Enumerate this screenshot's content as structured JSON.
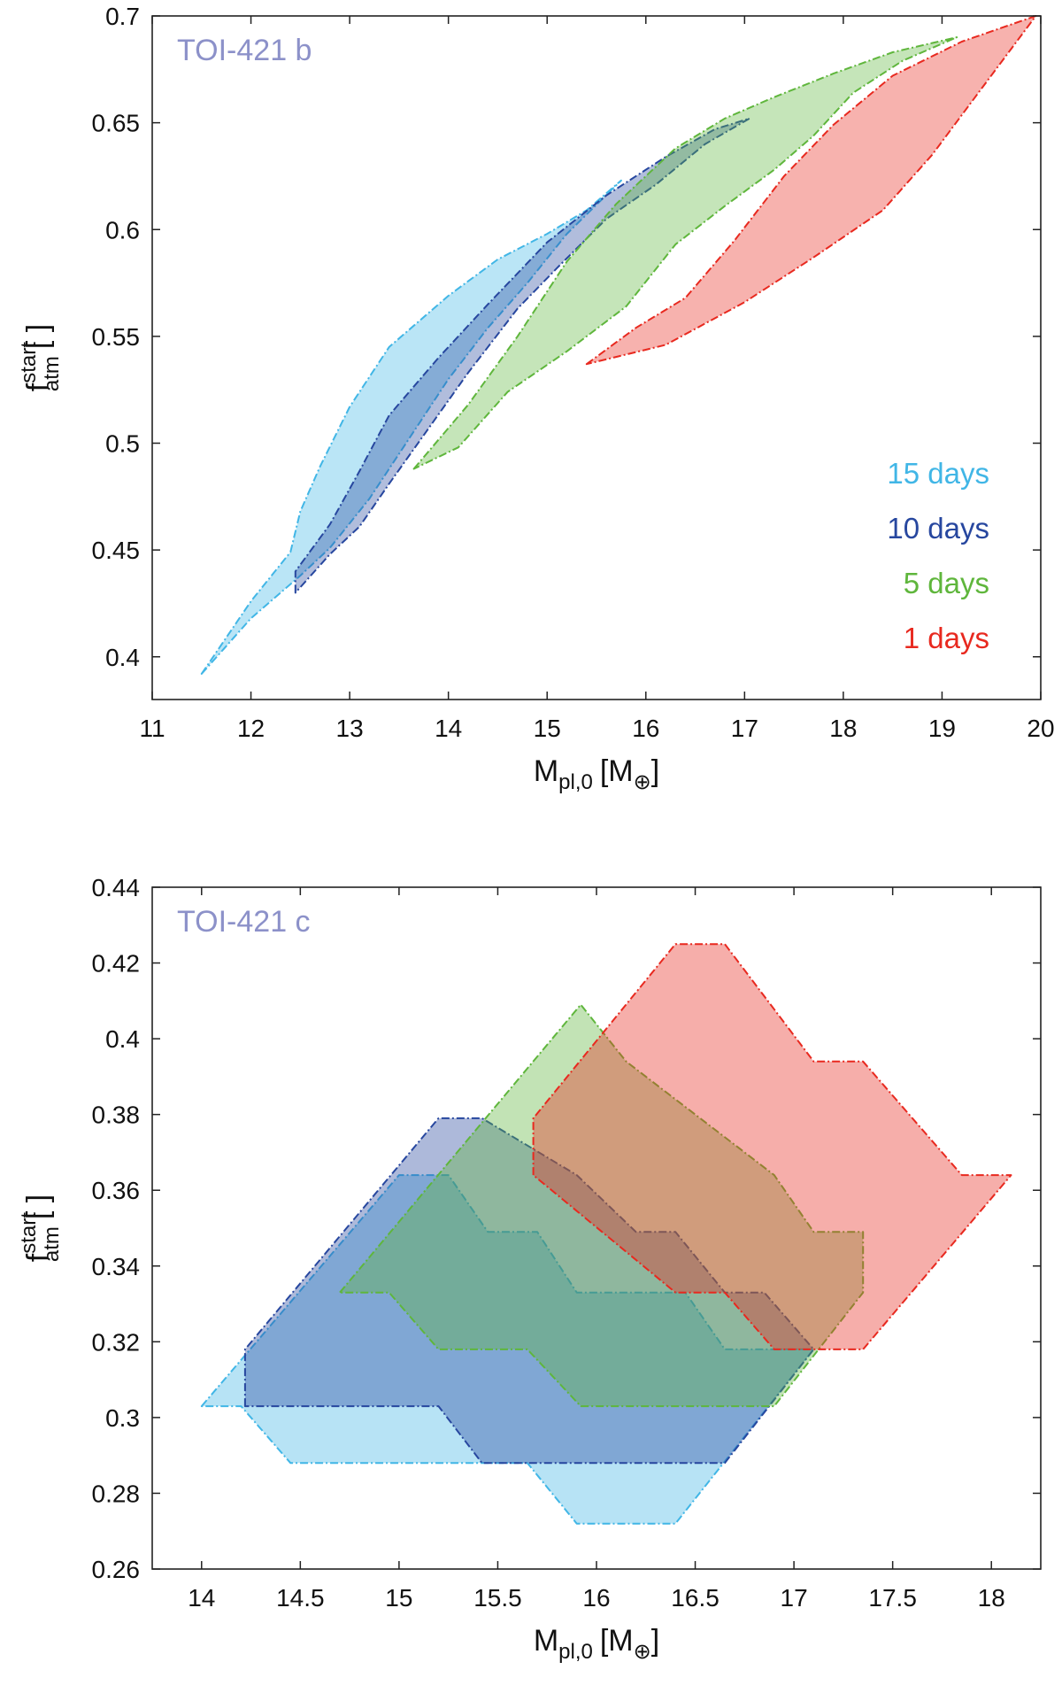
{
  "colors": {
    "15 days": "#41b6e6",
    "10 days": "#27479f",
    "5 days": "#5fb63c",
    "1 days": "#e8291f",
    "title": "#8c91c9"
  },
  "chart_data": [
    {
      "type": "area",
      "title": "TOI-421 b",
      "xlabel": "M_pl,0 [M_⊕]",
      "xlabel_main": "M",
      "xlabel_sub": "pl,0",
      "xlabel_unit": "[M",
      "xlabel_unit_sub": "⊕",
      "xlabel_unit_close": "]",
      "ylabel": "f_atm^start [ ]",
      "ylabel_main": "f",
      "ylabel_sup": "start",
      "ylabel_sub": "atm",
      "ylabel_unit": "[ ]",
      "xlim": [
        11,
        20
      ],
      "ylim": [
        0.38,
        0.7
      ],
      "xticks": [
        11,
        12,
        13,
        14,
        15,
        16,
        17,
        18,
        19,
        20
      ],
      "xtick_labels": [
        "11",
        "12",
        "13",
        "14",
        "15",
        "16",
        "17",
        "18",
        "19",
        "20"
      ],
      "yticks": [
        0.4,
        0.45,
        0.5,
        0.55,
        0.6,
        0.65,
        0.7
      ],
      "ytick_labels": [
        "0.4",
        "0.45",
        "0.5",
        "0.55",
        "0.6",
        "0.65",
        "0.7"
      ],
      "legend_position": "bottom-right",
      "legend": [
        "15 days",
        "10 days",
        "5 days",
        "1 days"
      ],
      "series": [
        {
          "name": "15 days",
          "upper": [
            [
              11.5,
              0.392
            ],
            [
              12.0,
              0.426
            ],
            [
              12.4,
              0.449
            ],
            [
              12.5,
              0.468
            ],
            [
              12.7,
              0.489
            ],
            [
              13.0,
              0.517
            ],
            [
              13.4,
              0.545
            ],
            [
              14.0,
              0.569
            ],
            [
              14.5,
              0.586
            ],
            [
              15.0,
              0.598
            ],
            [
              15.4,
              0.609
            ],
            [
              15.75,
              0.623
            ]
          ],
          "lower": [
            [
              11.5,
              0.392
            ],
            [
              12.0,
              0.418
            ],
            [
              12.5,
              0.438
            ],
            [
              12.8,
              0.451
            ],
            [
              13.2,
              0.474
            ],
            [
              13.6,
              0.502
            ],
            [
              14.0,
              0.53
            ],
            [
              14.4,
              0.554
            ],
            [
              14.8,
              0.575
            ],
            [
              15.2,
              0.598
            ],
            [
              15.75,
              0.623
            ]
          ]
        },
        {
          "name": "10 days",
          "upper": [
            [
              12.45,
              0.43
            ],
            [
              12.45,
              0.44
            ],
            [
              12.8,
              0.462
            ],
            [
              13.1,
              0.487
            ],
            [
              13.4,
              0.513
            ],
            [
              13.9,
              0.54
            ],
            [
              14.4,
              0.565
            ],
            [
              15.0,
              0.594
            ],
            [
              15.6,
              0.616
            ],
            [
              16.2,
              0.634
            ],
            [
              16.7,
              0.647
            ],
            [
              17.05,
              0.652
            ]
          ],
          "lower": [
            [
              12.45,
              0.43
            ],
            [
              12.8,
              0.448
            ],
            [
              13.1,
              0.461
            ],
            [
              13.4,
              0.481
            ],
            [
              13.8,
              0.507
            ],
            [
              14.2,
              0.533
            ],
            [
              14.7,
              0.563
            ],
            [
              15.1,
              0.582
            ],
            [
              15.6,
              0.605
            ],
            [
              16.1,
              0.621
            ],
            [
              16.6,
              0.64
            ],
            [
              17.05,
              0.652
            ]
          ]
        },
        {
          "name": "5 days",
          "upper": [
            [
              13.65,
              0.488
            ],
            [
              14.2,
              0.518
            ],
            [
              14.7,
              0.55
            ],
            [
              15.2,
              0.585
            ],
            [
              15.7,
              0.612
            ],
            [
              16.3,
              0.638
            ],
            [
              16.8,
              0.652
            ],
            [
              17.3,
              0.662
            ],
            [
              17.9,
              0.673
            ],
            [
              18.5,
              0.683
            ],
            [
              19.15,
              0.69
            ]
          ],
          "lower": [
            [
              13.65,
              0.488
            ],
            [
              14.1,
              0.498
            ],
            [
              14.6,
              0.524
            ],
            [
              15.2,
              0.543
            ],
            [
              15.8,
              0.564
            ],
            [
              16.3,
              0.593
            ],
            [
              16.8,
              0.611
            ],
            [
              17.3,
              0.628
            ],
            [
              17.7,
              0.644
            ],
            [
              18.1,
              0.664
            ],
            [
              18.6,
              0.679
            ],
            [
              19.15,
              0.69
            ]
          ]
        },
        {
          "name": "1 days",
          "upper": [
            [
              15.4,
              0.537
            ],
            [
              15.9,
              0.554
            ],
            [
              16.4,
              0.568
            ],
            [
              16.9,
              0.595
            ],
            [
              17.4,
              0.625
            ],
            [
              17.9,
              0.649
            ],
            [
              18.5,
              0.672
            ],
            [
              19.2,
              0.688
            ],
            [
              19.95,
              0.7
            ]
          ],
          "lower": [
            [
              15.4,
              0.537
            ],
            [
              16.2,
              0.546
            ],
            [
              17.0,
              0.566
            ],
            [
              17.7,
              0.587
            ],
            [
              18.4,
              0.609
            ],
            [
              18.9,
              0.635
            ],
            [
              19.4,
              0.666
            ],
            [
              19.95,
              0.7
            ]
          ]
        }
      ]
    },
    {
      "type": "area",
      "title": "TOI-421 c",
      "xlabel": "M_pl,0 [M_⊕]",
      "xlabel_main": "M",
      "xlabel_sub": "pl,0",
      "xlabel_unit": "[M",
      "xlabel_unit_sub": "⊕",
      "xlabel_unit_close": "]",
      "ylabel": "f_atm^start [ ]",
      "ylabel_main": "f",
      "ylabel_sup": "start",
      "ylabel_sub": "atm",
      "ylabel_unit": "[ ]",
      "xlim": [
        13.75,
        18.25
      ],
      "ylim": [
        0.26,
        0.44
      ],
      "xticks": [
        14,
        14.5,
        15,
        15.5,
        16,
        16.5,
        17,
        17.5,
        18
      ],
      "xtick_labels": [
        "14",
        "14.5",
        "15",
        "15.5",
        "16",
        "16.5",
        "17",
        "17.5",
        "18"
      ],
      "yticks": [
        0.26,
        0.28,
        0.3,
        0.32,
        0.34,
        0.36,
        0.38,
        0.4,
        0.42,
        0.44
      ],
      "ytick_labels": [
        "0.26",
        "0.28",
        "0.3",
        "0.32",
        "0.34",
        "0.36",
        "0.38",
        "0.4",
        "0.42",
        "0.44"
      ],
      "series": [
        {
          "name": "15 days",
          "polygon": [
            [
              14.0,
              0.303
            ],
            [
              15.0,
              0.364
            ],
            [
              15.25,
              0.364
            ],
            [
              15.45,
              0.349
            ],
            [
              15.7,
              0.349
            ],
            [
              15.9,
              0.333
            ],
            [
              16.45,
              0.333
            ],
            [
              16.65,
              0.318
            ],
            [
              17.1,
              0.318
            ],
            [
              16.4,
              0.272
            ],
            [
              15.9,
              0.272
            ],
            [
              15.65,
              0.288
            ],
            [
              14.45,
              0.288
            ],
            [
              14.2,
              0.303
            ]
          ]
        },
        {
          "name": "10 days",
          "polygon": [
            [
              14.22,
              0.303
            ],
            [
              14.22,
              0.318
            ],
            [
              15.2,
              0.379
            ],
            [
              15.42,
              0.379
            ],
            [
              15.9,
              0.364
            ],
            [
              15.9,
              0.364
            ],
            [
              16.2,
              0.349
            ],
            [
              16.4,
              0.349
            ],
            [
              16.65,
              0.333
            ],
            [
              16.85,
              0.333
            ],
            [
              17.1,
              0.318
            ],
            [
              16.65,
              0.288
            ],
            [
              15.42,
              0.288
            ],
            [
              15.2,
              0.303
            ]
          ]
        },
        {
          "name": "5 days",
          "polygon": [
            [
              14.7,
              0.333
            ],
            [
              15.92,
              0.409
            ],
            [
              16.15,
              0.394
            ],
            [
              16.9,
              0.364
            ],
            [
              17.1,
              0.349
            ],
            [
              17.35,
              0.349
            ],
            [
              17.35,
              0.333
            ],
            [
              16.9,
              0.303
            ],
            [
              15.92,
              0.303
            ],
            [
              15.65,
              0.318
            ],
            [
              15.2,
              0.318
            ],
            [
              14.95,
              0.333
            ]
          ]
        },
        {
          "name": "1 days",
          "polygon": [
            [
              15.68,
              0.364
            ],
            [
              15.68,
              0.379
            ],
            [
              16.4,
              0.425
            ],
            [
              16.65,
              0.425
            ],
            [
              17.1,
              0.394
            ],
            [
              17.35,
              0.394
            ],
            [
              17.85,
              0.364
            ],
            [
              18.1,
              0.364
            ],
            [
              17.35,
              0.318
            ],
            [
              16.9,
              0.318
            ],
            [
              16.65,
              0.333
            ],
            [
              16.4,
              0.333
            ]
          ]
        }
      ]
    }
  ]
}
